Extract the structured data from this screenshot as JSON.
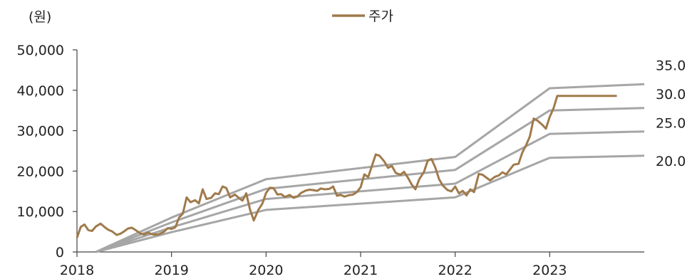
{
  "unit_label": "(원)",
  "legend": {
    "label": "주가",
    "color": "#a07a4b"
  },
  "chart_data": {
    "type": "line",
    "title": "",
    "xlabel": "",
    "ylabel": "(원)",
    "ylim": [
      0,
      50000
    ],
    "xlim": [
      2018.0,
      2024.0
    ],
    "yticks": [
      "0",
      "10,000",
      "20,000",
      "30,000",
      "40,000",
      "50,000"
    ],
    "ytick_values": [
      0,
      10000,
      20000,
      30000,
      40000,
      50000
    ],
    "xticks": [
      "2018",
      "2019",
      "2020",
      "2021",
      "2022",
      "2023"
    ],
    "xtick_values": [
      2018,
      2019,
      2020,
      2021,
      2022,
      2023
    ],
    "grid": false,
    "legend_position": "top-center",
    "band_color": "#a6a6a6",
    "series": [
      {
        "name": "주가",
        "color": "#a07a4b",
        "x": [
          2018.0,
          2018.04,
          2018.08,
          2018.12,
          2018.16,
          2018.2,
          2018.25,
          2018.29,
          2018.33,
          2018.37,
          2018.42,
          2018.46,
          2018.5,
          2018.54,
          2018.58,
          2018.62,
          2018.67,
          2018.71,
          2018.75,
          2018.79,
          2018.83,
          2018.87,
          2018.92,
          2018.96,
          2019.0,
          2019.04,
          2019.08,
          2019.12,
          2019.16,
          2019.2,
          2019.25,
          2019.29,
          2019.33,
          2019.37,
          2019.42,
          2019.46,
          2019.5,
          2019.54,
          2019.58,
          2019.62,
          2019.67,
          2019.71,
          2019.75,
          2019.79,
          2019.83,
          2019.87,
          2019.92,
          2019.96,
          2020.0,
          2020.04,
          2020.08,
          2020.12,
          2020.16,
          2020.2,
          2020.25,
          2020.29,
          2020.33,
          2020.37,
          2020.42,
          2020.46,
          2020.5,
          2020.54,
          2020.58,
          2020.62,
          2020.67,
          2020.71,
          2020.75,
          2020.79,
          2020.83,
          2020.87,
          2020.92,
          2020.96,
          2021.0,
          2021.04,
          2021.08,
          2021.12,
          2021.16,
          2021.2,
          2021.25,
          2021.29,
          2021.33,
          2021.37,
          2021.42,
          2021.46,
          2021.5,
          2021.54,
          2021.58,
          2021.62,
          2021.67,
          2021.71,
          2021.75,
          2021.79,
          2021.83,
          2021.87,
          2021.92,
          2021.96,
          2022.0,
          2022.04,
          2022.08,
          2022.12,
          2022.16,
          2022.2,
          2022.25,
          2022.29,
          2022.33,
          2022.37,
          2022.42,
          2022.46,
          2022.5,
          2022.54,
          2022.58,
          2022.62,
          2022.67,
          2022.71,
          2022.75,
          2022.79,
          2022.83,
          2022.87,
          2022.92,
          2022.96,
          2023.0,
          2023.04,
          2023.08,
          2023.12,
          2023.16,
          2023.2,
          2023.25,
          2023.29,
          2023.33,
          2023.37,
          2023.42,
          2023.46,
          2023.5,
          2023.54,
          2023.58,
          2023.62,
          2023.67,
          2023.71
        ],
        "values": [
          3500,
          6200,
          6800,
          5400,
          5200,
          6300,
          7000,
          6200,
          5500,
          5100,
          4200,
          4500,
          5100,
          5800,
          6000,
          5400,
          4600,
          4300,
          4800,
          4400,
          4300,
          4400,
          5000,
          5900,
          5700,
          6100,
          8500,
          9500,
          13500,
          12300,
          12800,
          12000,
          15500,
          13100,
          13400,
          14500,
          14300,
          16200,
          15800,
          13500,
          14200,
          13400,
          12700,
          14500,
          10500,
          7800,
          10500,
          11900,
          14600,
          15900,
          15800,
          14200,
          14300,
          13600,
          14100,
          13400,
          13700,
          14600,
          15200,
          15400,
          15300,
          15100,
          15700,
          15500,
          15600,
          16200,
          13900,
          14100,
          13700,
          14000,
          14200,
          14800,
          16000,
          19200,
          18500,
          21300,
          24100,
          23800,
          22400,
          20800,
          21300,
          19600,
          19100,
          19800,
          18400,
          16700,
          15500,
          18000,
          19800,
          22600,
          23000,
          20900,
          18000,
          16400,
          15300,
          15000,
          16200,
          14500,
          15100,
          14000,
          15500,
          14800,
          19300,
          19100,
          18400,
          17700,
          18600,
          18900,
          19700,
          19200,
          20400,
          21600,
          21800,
          24600,
          26400,
          28600,
          33000,
          32500,
          31500,
          30500,
          33400,
          35500,
          38600,
          38600,
          38600,
          38600,
          38600,
          38600,
          38600,
          38600,
          38600,
          38600,
          38600,
          38600,
          38600,
          38600,
          38600,
          38600
        ]
      }
    ],
    "bands": [
      {
        "name": "35.0",
        "x": [
          2018.2,
          2019.0,
          2020.0,
          2022.0,
          2023.0,
          2024.0
        ],
        "values": [
          0,
          8500,
          18000,
          23500,
          40500,
          41500
        ]
      },
      {
        "name": "30.0",
        "x": [
          2018.2,
          2019.0,
          2020.0,
          2022.0,
          2023.0,
          2024.0
        ],
        "values": [
          0,
          7300,
          15600,
          20300,
          35000,
          35600
        ]
      },
      {
        "name": "25.0",
        "x": [
          2018.2,
          2019.0,
          2020.0,
          2022.0,
          2023.0,
          2024.0
        ],
        "values": [
          0,
          6100,
          13100,
          16900,
          29200,
          29800
        ]
      },
      {
        "name": "20.0",
        "x": [
          2018.2,
          2019.0,
          2020.0,
          2022.0,
          2023.0,
          2024.0
        ],
        "values": [
          0,
          4900,
          10400,
          13500,
          23300,
          23800
        ]
      }
    ]
  }
}
